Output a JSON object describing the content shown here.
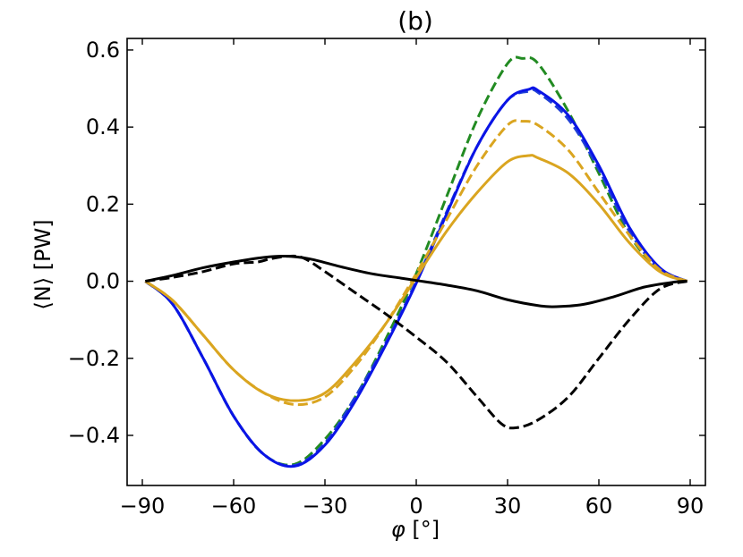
{
  "chart_data": {
    "type": "line",
    "title": "(b)",
    "xlabel_sym": "φ",
    "xlabel_unit": " [°]",
    "ylabel_sym": "⟨N⟩",
    "ylabel_unit": " [PW]",
    "xlim": [
      -95,
      95
    ],
    "ylim": [
      -0.53,
      0.63
    ],
    "xticks": [
      -90,
      -60,
      -30,
      0,
      30,
      60,
      90
    ],
    "xtick_labels": [
      "−90",
      "−60",
      "−30",
      "0",
      "30",
      "60",
      "90"
    ],
    "yticks": [
      -0.4,
      -0.2,
      0.0,
      0.2,
      0.4,
      0.6
    ],
    "ytick_labels": [
      "−0.4",
      "−0.2",
      "0.0",
      "0.2",
      "0.4",
      "0.6"
    ],
    "legend": "none",
    "grid": false,
    "series": [
      {
        "name": "green dashed",
        "color": "#228b22",
        "dashed": true,
        "x": [
          -89,
          -80,
          -70,
          -60,
          -50,
          -40,
          -30,
          -20,
          -10,
          0,
          10,
          20,
          30,
          35,
          40,
          50,
          60,
          70,
          80,
          89
        ],
        "y": [
          0.0,
          -0.06,
          -0.2,
          -0.35,
          -0.45,
          -0.475,
          -0.41,
          -0.3,
          -0.15,
          0.02,
          0.22,
          0.42,
          0.565,
          0.578,
          0.565,
          0.44,
          0.28,
          0.12,
          0.03,
          0.0
        ]
      },
      {
        "name": "blue dashed",
        "color": "#1f3fd6",
        "dashed": true,
        "x": [
          -89,
          -80,
          -70,
          -60,
          -50,
          -40,
          -30,
          -20,
          -10,
          0,
          10,
          20,
          30,
          37,
          40,
          50,
          60,
          70,
          80,
          89
        ],
        "y": [
          0.0,
          -0.06,
          -0.2,
          -0.35,
          -0.45,
          -0.478,
          -0.42,
          -0.3,
          -0.16,
          0.0,
          0.18,
          0.35,
          0.47,
          0.493,
          0.49,
          0.42,
          0.29,
          0.13,
          0.03,
          0.0
        ]
      },
      {
        "name": "blue solid",
        "color": "#0a14e6",
        "dashed": false,
        "x": [
          -89,
          -80,
          -70,
          -60,
          -50,
          -40,
          -30,
          -20,
          -10,
          0,
          10,
          20,
          30,
          37,
          40,
          50,
          60,
          70,
          80,
          89
        ],
        "y": [
          0.0,
          -0.06,
          -0.2,
          -0.35,
          -0.45,
          -0.48,
          -0.425,
          -0.31,
          -0.165,
          -0.005,
          0.175,
          0.35,
          0.47,
          0.498,
          0.495,
          0.43,
          0.3,
          0.14,
          0.035,
          0.0
        ]
      },
      {
        "name": "gold dashed",
        "color": "#daa520",
        "dashed": true,
        "x": [
          -89,
          -80,
          -70,
          -60,
          -50,
          -40,
          -30,
          -20,
          -10,
          0,
          10,
          20,
          30,
          35,
          40,
          50,
          60,
          70,
          80,
          89
        ],
        "y": [
          0.0,
          -0.05,
          -0.14,
          -0.23,
          -0.29,
          -0.32,
          -0.3,
          -0.22,
          -0.11,
          0.02,
          0.16,
          0.3,
          0.405,
          0.415,
          0.405,
          0.34,
          0.23,
          0.12,
          0.03,
          0.0
        ]
      },
      {
        "name": "gold solid",
        "color": "#daa520",
        "dashed": false,
        "x": [
          -89,
          -80,
          -70,
          -60,
          -50,
          -40,
          -30,
          -20,
          -10,
          0,
          10,
          20,
          30,
          37,
          40,
          50,
          60,
          70,
          80,
          89
        ],
        "y": [
          0.0,
          -0.05,
          -0.14,
          -0.23,
          -0.29,
          -0.31,
          -0.29,
          -0.21,
          -0.11,
          0.01,
          0.13,
          0.23,
          0.31,
          0.326,
          0.32,
          0.28,
          0.2,
          0.1,
          0.025,
          0.0
        ]
      },
      {
        "name": "black solid",
        "color": "#000000",
        "dashed": false,
        "x": [
          -89,
          -80,
          -70,
          -60,
          -50,
          -43,
          -35,
          -25,
          -15,
          -5,
          0,
          10,
          20,
          30,
          40,
          46,
          55,
          65,
          75,
          85,
          89
        ],
        "y": [
          0.0,
          0.015,
          0.035,
          0.05,
          0.062,
          0.065,
          0.058,
          0.038,
          0.02,
          0.008,
          0.002,
          -0.01,
          -0.025,
          -0.048,
          -0.063,
          -0.066,
          -0.06,
          -0.04,
          -0.015,
          -0.002,
          0.0
        ]
      },
      {
        "name": "black dashed",
        "color": "#000000",
        "dashed": true,
        "x": [
          -89,
          -80,
          -70,
          -60,
          -52,
          -48,
          -42,
          -37,
          -30,
          -20,
          -10,
          0,
          10,
          20,
          28,
          33,
          40,
          50,
          60,
          70,
          80,
          89
        ],
        "y": [
          0.0,
          0.01,
          0.025,
          0.045,
          0.05,
          0.058,
          0.065,
          0.06,
          0.025,
          -0.03,
          -0.085,
          -0.145,
          -0.21,
          -0.3,
          -0.37,
          -0.38,
          -0.36,
          -0.3,
          -0.2,
          -0.1,
          -0.02,
          0.0
        ]
      }
    ]
  }
}
